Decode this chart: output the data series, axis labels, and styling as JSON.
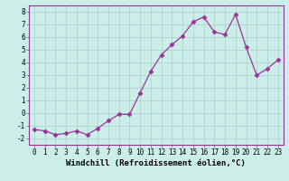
{
  "x": [
    0,
    1,
    2,
    3,
    4,
    5,
    6,
    7,
    8,
    9,
    10,
    11,
    12,
    13,
    14,
    15,
    16,
    17,
    18,
    19,
    20,
    21,
    22,
    23
  ],
  "y": [
    -1.3,
    -1.4,
    -1.7,
    -1.6,
    -1.4,
    -1.7,
    -1.2,
    -0.6,
    -0.1,
    -0.1,
    1.6,
    3.3,
    4.6,
    5.4,
    6.1,
    7.2,
    7.6,
    6.4,
    6.2,
    7.8,
    5.2,
    3.0,
    3.5,
    4.2
  ],
  "line_color": "#993399",
  "marker": "D",
  "marker_size": 2.5,
  "bg_color": "#cceee8",
  "grid_color": "#aacccc",
  "xlabel": "Windchill (Refroidissement éolien,°C)",
  "xlim": [
    -0.5,
    23.5
  ],
  "ylim": [
    -2.5,
    8.5
  ],
  "yticks": [
    -2,
    -1,
    0,
    1,
    2,
    3,
    4,
    5,
    6,
    7,
    8
  ],
  "xticks": [
    0,
    1,
    2,
    3,
    4,
    5,
    6,
    7,
    8,
    9,
    10,
    11,
    12,
    13,
    14,
    15,
    16,
    17,
    18,
    19,
    20,
    21,
    22,
    23
  ],
  "tick_fontsize": 5.5,
  "xlabel_fontsize": 6.5,
  "line_width": 0.9
}
